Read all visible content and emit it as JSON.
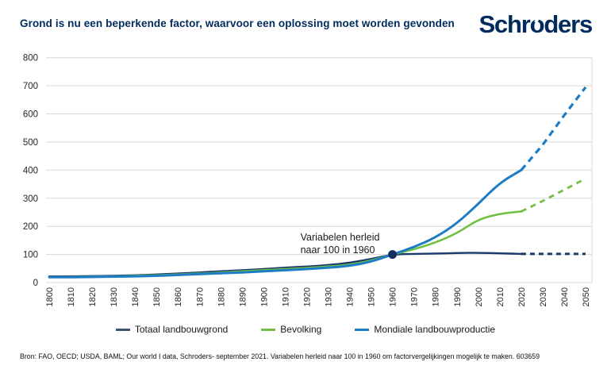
{
  "header": {
    "logo_parts": [
      "Schr",
      "o",
      "ders"
    ]
  },
  "chart_data": {
    "type": "line",
    "title": "Grond is nu een beperkende factor, waarvoor een oplossing moet worden gevonden",
    "xlabel": "",
    "ylabel": "",
    "ylim": [
      0,
      800
    ],
    "yticks": [
      0,
      100,
      200,
      300,
      400,
      500,
      600,
      700,
      800
    ],
    "grid": "horizontal",
    "legend_position": "bottom",
    "x": [
      1800,
      1810,
      1820,
      1830,
      1840,
      1850,
      1860,
      1870,
      1880,
      1890,
      1900,
      1910,
      1920,
      1930,
      1940,
      1950,
      1960,
      1970,
      1980,
      1990,
      2000,
      2010,
      2020,
      2030,
      2040,
      2050
    ],
    "forecast_from": 2020,
    "series": [
      {
        "name": "Totaal landbouwgrond",
        "color": "#193a6a",
        "swatch_color": "#3d5574",
        "dash": "6 5",
        "values": [
          22,
          22,
          23,
          24,
          26,
          29,
          32,
          36,
          40,
          44,
          48,
          53,
          57,
          62,
          70,
          84,
          100,
          102,
          103,
          105,
          106,
          104,
          102,
          102,
          102,
          102
        ]
      },
      {
        "name": "Bevolking",
        "color": "#72bf44",
        "swatch_color": "#72bf44",
        "dash": "7 6",
        "values": [
          20,
          20,
          21,
          22,
          24,
          26,
          29,
          32,
          36,
          40,
          44,
          48,
          52,
          57,
          63,
          78,
          100,
          118,
          142,
          175,
          225,
          245,
          253,
          290,
          330,
          370
        ]
      },
      {
        "name": "Mondiale landbouwproductie",
        "color": "#1d7dc4",
        "swatch_color": "#1d7dc4",
        "dash": "8 6",
        "values": [
          19,
          19,
          20,
          21,
          22,
          24,
          27,
          30,
          33,
          36,
          40,
          44,
          48,
          53,
          59,
          74,
          100,
          126,
          160,
          210,
          280,
          355,
          400,
          490,
          595,
          695
        ]
      }
    ],
    "annotation": {
      "lines": [
        "Variabelen herleid",
        "naar 100 in 1960"
      ],
      "at_x": 1960,
      "at_y": 100,
      "dot_color": "#14305e"
    },
    "colors": {
      "gridline": "#d9d9d9",
      "axis_text": "#262626",
      "title_navy": "#002b5c"
    }
  },
  "footer": {
    "source": "Bron: FAO, OECD; USDA, BAML; Our world I data, Schroders- september 2021. Variabelen herleid naar 100 in 1960 om factorvergelijkingen mogelijk te maken. 603659"
  }
}
